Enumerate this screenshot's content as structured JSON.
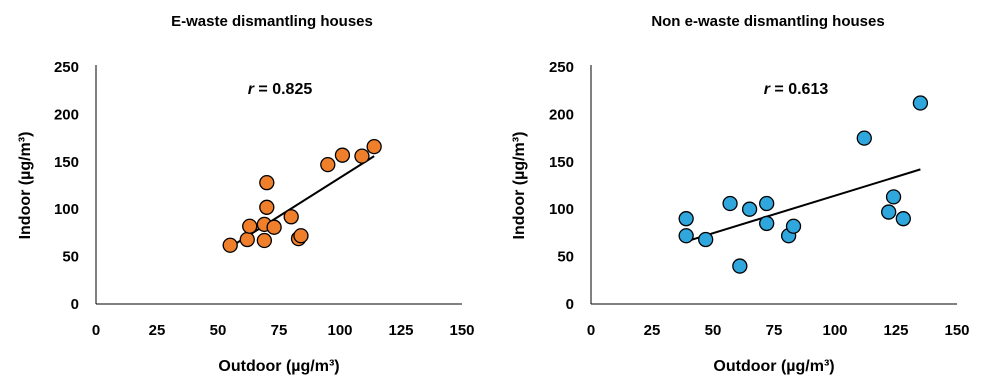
{
  "chart_data": [
    {
      "type": "scatter",
      "title": "E-waste dismantling houses",
      "xlabel": "Outdoor (µg/m³)",
      "ylabel": "Indoor (µg/m³)",
      "xlim": [
        0,
        150
      ],
      "ylim": [
        0,
        250
      ],
      "xticks": [
        0,
        25,
        50,
        75,
        100,
        125,
        150
      ],
      "yticks": [
        0,
        50,
        100,
        150,
        200,
        250
      ],
      "grid": false,
      "marker_color": "#f07f2c",
      "annotation": {
        "symbol": "r",
        "text": " = 0.825"
      },
      "points": [
        {
          "x": 55,
          "y": 62
        },
        {
          "x": 62,
          "y": 68
        },
        {
          "x": 63,
          "y": 82
        },
        {
          "x": 69,
          "y": 67
        },
        {
          "x": 69,
          "y": 84
        },
        {
          "x": 70,
          "y": 102
        },
        {
          "x": 70,
          "y": 128
        },
        {
          "x": 73,
          "y": 81
        },
        {
          "x": 80,
          "y": 92
        },
        {
          "x": 83,
          "y": 69
        },
        {
          "x": 84,
          "y": 72
        },
        {
          "x": 95,
          "y": 147
        },
        {
          "x": 101,
          "y": 157
        },
        {
          "x": 109,
          "y": 156
        },
        {
          "x": 114,
          "y": 166
        }
      ],
      "trendline": {
        "x": [
          55,
          114
        ],
        "y": [
          60,
          156
        ]
      }
    },
    {
      "type": "scatter",
      "title": "Non e-waste dismantling houses",
      "xlabel": "Outdoor (µg/m³)",
      "ylabel": "Indoor (µg/m³)",
      "xlim": [
        0,
        150
      ],
      "ylim": [
        0,
        250
      ],
      "xticks": [
        0,
        25,
        50,
        75,
        100,
        125,
        150
      ],
      "yticks": [
        0,
        50,
        100,
        150,
        200,
        250
      ],
      "grid": false,
      "marker_color": "#2fa6dc",
      "annotation": {
        "symbol": "r",
        "text": " = 0.613"
      },
      "points": [
        {
          "x": 39,
          "y": 72
        },
        {
          "x": 39,
          "y": 90
        },
        {
          "x": 47,
          "y": 68
        },
        {
          "x": 57,
          "y": 106
        },
        {
          "x": 61,
          "y": 40
        },
        {
          "x": 65,
          "y": 100
        },
        {
          "x": 72,
          "y": 106
        },
        {
          "x": 72,
          "y": 85
        },
        {
          "x": 81,
          "y": 72
        },
        {
          "x": 83,
          "y": 82
        },
        {
          "x": 112,
          "y": 175
        },
        {
          "x": 122,
          "y": 97
        },
        {
          "x": 124,
          "y": 113
        },
        {
          "x": 128,
          "y": 90
        },
        {
          "x": 135,
          "y": 212
        }
      ],
      "trendline": {
        "x": [
          39,
          135
        ],
        "y": [
          66,
          142
        ]
      }
    }
  ]
}
